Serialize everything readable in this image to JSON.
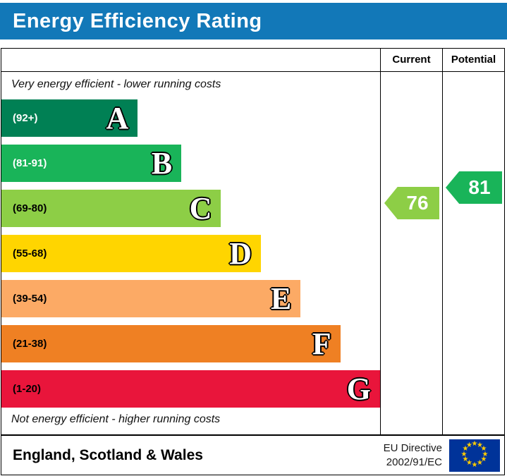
{
  "header": {
    "title": "Energy Efficiency Rating",
    "bg": "#1278b8"
  },
  "columns": {
    "current": "Current",
    "potential": "Potential"
  },
  "notes": {
    "top": "Very energy efficient - lower running costs",
    "bottom": "Not energy efficient - higher running costs"
  },
  "chart_data": {
    "type": "bar",
    "title": "Energy Efficiency Rating",
    "bands": [
      {
        "letter": "A",
        "range": "(92+)",
        "min": 92,
        "max": 100,
        "color": "#008054",
        "label_color": "#ffffff",
        "width_pct": 36
      },
      {
        "letter": "B",
        "range": "(81-91)",
        "min": 81,
        "max": 91,
        "color": "#19b459",
        "label_color": "#ffffff",
        "width_pct": 47.5
      },
      {
        "letter": "C",
        "range": "(69-80)",
        "min": 69,
        "max": 80,
        "color": "#8dce46",
        "label_color": "#000000",
        "width_pct": 58
      },
      {
        "letter": "D",
        "range": "(55-68)",
        "min": 55,
        "max": 68,
        "color": "#ffd500",
        "label_color": "#000000",
        "width_pct": 68.5
      },
      {
        "letter": "E",
        "range": "(39-54)",
        "min": 39,
        "max": 54,
        "color": "#fcaa65",
        "label_color": "#000000",
        "width_pct": 79
      },
      {
        "letter": "F",
        "range": "(21-38)",
        "min": 21,
        "max": 38,
        "color": "#ef8023",
        "label_color": "#000000",
        "width_pct": 89.5
      },
      {
        "letter": "G",
        "range": "(1-20)",
        "min": 1,
        "max": 20,
        "color": "#e9153b",
        "label_color": "#000000",
        "width_pct": 100
      }
    ],
    "current": {
      "value": 76,
      "color": "#8dce46"
    },
    "potential": {
      "value": 81,
      "color": "#19b459"
    }
  },
  "footer": {
    "region": "England, Scotland & Wales",
    "directive_line1": "EU Directive",
    "directive_line2": "2002/91/EC",
    "flag": {
      "bg": "#003399",
      "star_color": "#ffcc00"
    }
  }
}
